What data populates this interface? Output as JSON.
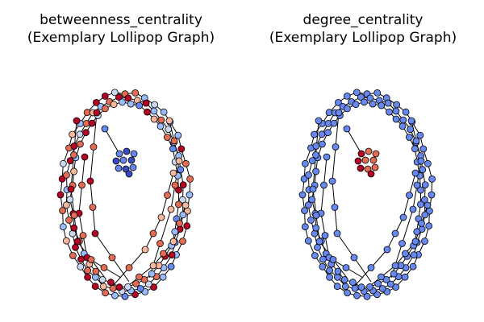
{
  "panels": [
    {
      "title_line1": "betweenness_centrality",
      "title_line2": "(Exemplary Lollipop Graph)",
      "metric": "betweenness_centrality",
      "node_color_scale": "coolwarm"
    },
    {
      "title_line1": "degree_centrality",
      "title_line2": "(Exemplary Lollipop Graph)",
      "metric": "degree_centrality",
      "node_color_scale": "coolwarm"
    }
  ],
  "colors": {
    "cool_dark": "#3b4cc0",
    "cool": "#6788ee",
    "cool_light": "#9abbff",
    "neutral": "#c9d7f0",
    "warm_light": "#f7b89c",
    "warm": "#e36c55",
    "warm_dark": "#b40426",
    "edge": "#000000"
  }
}
